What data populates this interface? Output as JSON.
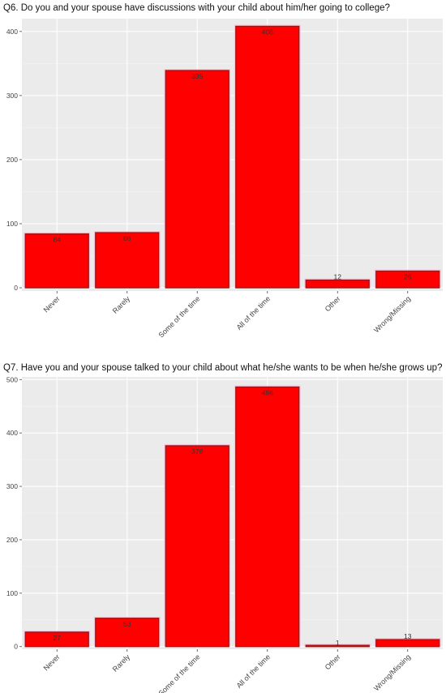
{
  "chart_data": [
    {
      "type": "bar",
      "title": "Q6. Do you and your spouse have discussions with your child about him/her going to college?",
      "categories": [
        "Never",
        "Rarely",
        "Some of the time",
        "All of the time",
        "Other",
        "Wrong/Missing"
      ],
      "values": [
        84,
        86,
        339,
        408,
        12,
        26
      ],
      "value_labels": [
        "84",
        "86",
        "339",
        "408",
        "12",
        "26"
      ],
      "yticks": [
        0,
        100,
        200,
        300,
        400
      ],
      "ylim": [
        -5,
        420
      ],
      "grid": true,
      "colors": {
        "bar": "#ff0000",
        "bar_outline": "#a31515",
        "panel": "#ebebeb",
        "grid": "#ffffff"
      }
    },
    {
      "type": "bar",
      "title": "Q7. Have you and your spouse talked to your child about what he/she wants to be when he/she grows up?",
      "categories": [
        "Never",
        "Rarely",
        "Some of the time",
        "All of the time",
        "Other",
        "Wrong/Missing"
      ],
      "values": [
        27,
        53,
        376,
        486,
        1,
        13
      ],
      "value_labels": [
        "27",
        "53",
        "376",
        "486",
        "1",
        "13"
      ],
      "yticks": [
        0,
        100,
        200,
        300,
        400,
        500
      ],
      "ylim": [
        -5,
        505
      ],
      "grid": true,
      "colors": {
        "bar": "#ff0000",
        "bar_outline": "#a31515",
        "panel": "#ebebeb",
        "grid": "#ffffff"
      }
    }
  ]
}
